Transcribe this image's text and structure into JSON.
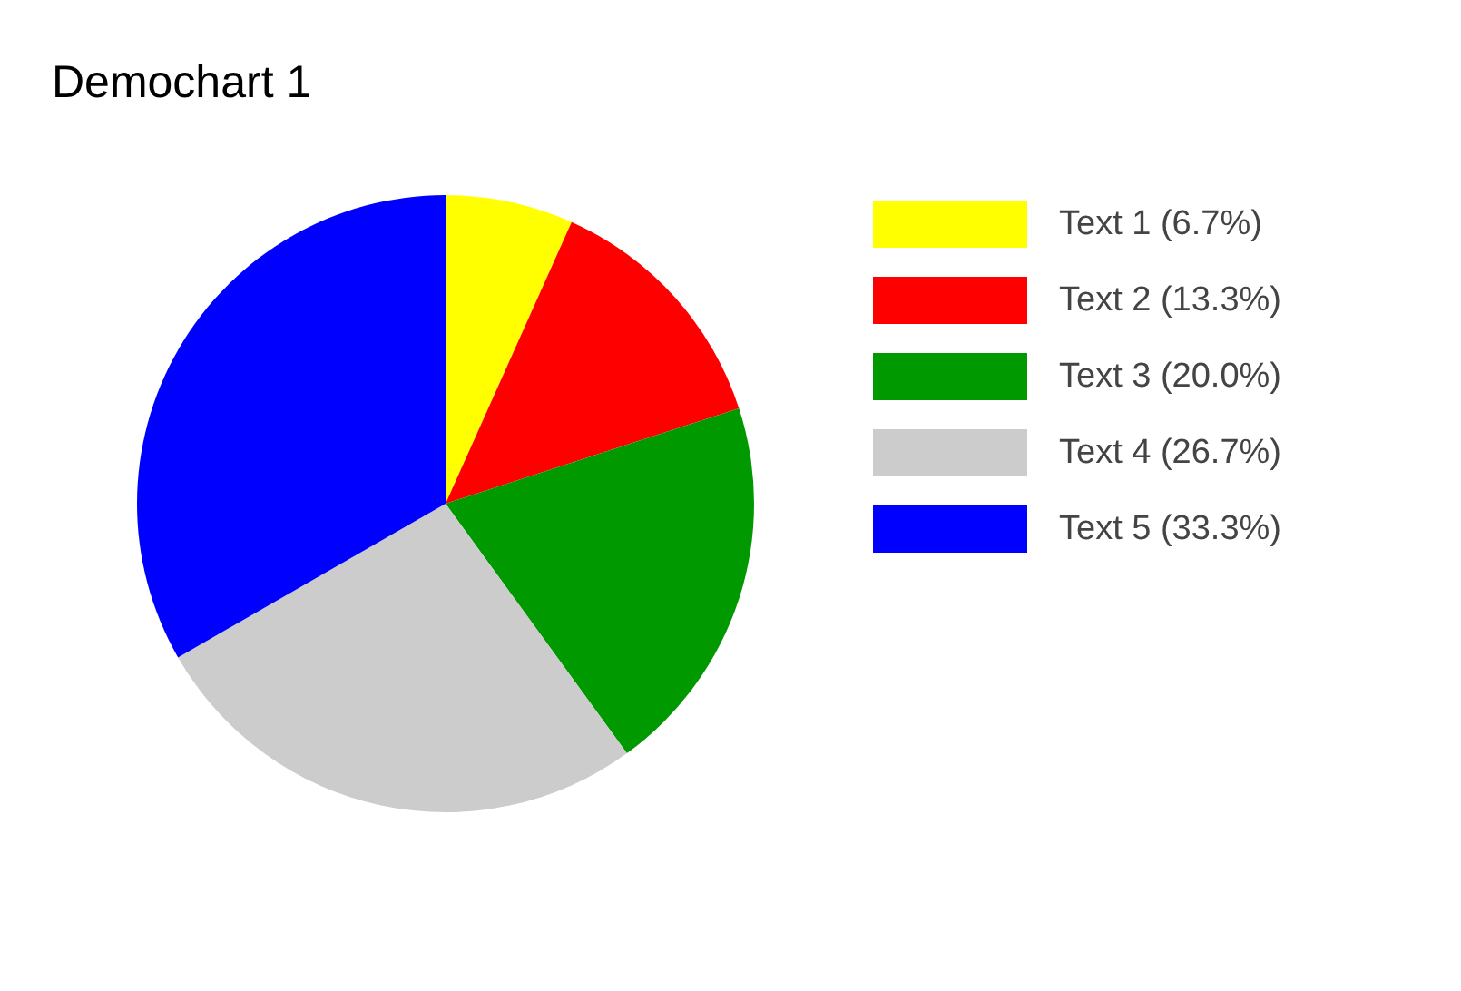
{
  "chart_data": {
    "type": "pie",
    "title": "Demochart 1",
    "categories": [
      "Text 1 (6.7%)",
      "Text 2 (13.3%)",
      "Text 3 (20.0%)",
      "Text 4 (26.7%)",
      "Text 5 (33.3%)"
    ],
    "values": [
      6.7,
      13.3,
      20.0,
      26.7,
      33.3
    ],
    "colors": [
      "#ffff00",
      "#ff0000",
      "#009900",
      "#cccccc",
      "#0000ff"
    ],
    "legend": "right"
  }
}
